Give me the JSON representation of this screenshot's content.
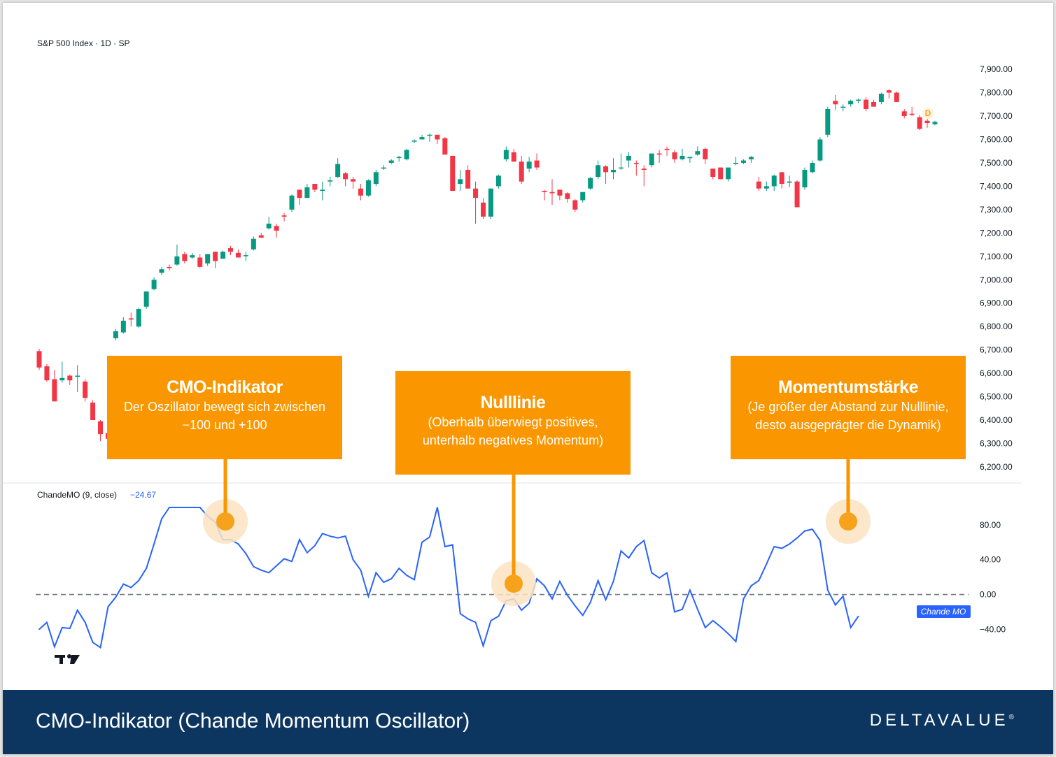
{
  "colors": {
    "up": "#089981",
    "down": "#f23645",
    "cmo_line": "#2962ff",
    "zero_line": "#787b86",
    "callout": "#fa9600",
    "marker": "#f7a21b",
    "halo": "#fbe3c1",
    "footer_bg": "#0c3660"
  },
  "chart_data": [
    {
      "type": "candlestick",
      "title": "S&P 500 Index · 1D · SP",
      "ylim": [
        6170,
        7960
      ],
      "yticks": [
        "7,900.00",
        "7,800.00",
        "7,700.00",
        "7,600.00",
        "7,500.00",
        "7,400.00",
        "7,300.00",
        "7,200.00",
        "7,100.00",
        "7,000.00",
        "6,900.00",
        "6,800.00",
        "6,700.00",
        "6,600.00",
        "6,500.00",
        "6,400.00",
        "6,300.00",
        "6,200.00"
      ],
      "ytick_values": [
        7900,
        7800,
        7700,
        7600,
        7500,
        7400,
        7300,
        7200,
        7100,
        7000,
        6900,
        6800,
        6700,
        6600,
        6500,
        6400,
        6300,
        6200
      ],
      "last_marker": "D",
      "candles": [
        [
          6695,
          6705,
          6615,
          6625
        ],
        [
          6630,
          6640,
          6565,
          6570
        ],
        [
          6575,
          6615,
          6480,
          6480
        ],
        [
          6570,
          6650,
          6560,
          6580
        ],
        [
          6590,
          6595,
          6550,
          6570
        ],
        [
          6590,
          6635,
          6520,
          6590
        ],
        [
          6565,
          6575,
          6480,
          6495
        ],
        [
          6475,
          6485,
          6400,
          6400
        ],
        [
          6395,
          6400,
          6310,
          6340
        ],
        [
          6345,
          6360,
          6310,
          6320
        ],
        [
          6750,
          6790,
          6740,
          6780
        ],
        [
          6775,
          6840,
          6770,
          6825
        ],
        [
          6835,
          6860,
          6800,
          6830
        ],
        [
          6800,
          6880,
          6795,
          6875
        ],
        [
          6885,
          6950,
          6875,
          6950
        ],
        [
          6960,
          7010,
          6955,
          7000
        ],
        [
          7030,
          7055,
          7020,
          7045
        ],
        [
          7055,
          7065,
          7040,
          7050
        ],
        [
          7065,
          7150,
          7060,
          7100
        ],
        [
          7110,
          7120,
          7070,
          7080
        ],
        [
          7095,
          7115,
          7090,
          7105
        ],
        [
          7095,
          7110,
          7050,
          7055
        ],
        [
          7070,
          7105,
          7060,
          7110
        ],
        [
          7120,
          7120,
          7050,
          7080
        ],
        [
          7090,
          7125,
          7090,
          7120
        ],
        [
          7135,
          7145,
          7105,
          7120
        ],
        [
          7115,
          7130,
          7100,
          7095
        ],
        [
          7105,
          7120,
          7080,
          7105
        ],
        [
          7130,
          7185,
          7125,
          7175
        ],
        [
          7190,
          7200,
          7180,
          7180
        ],
        [
          7220,
          7270,
          7215,
          7240
        ],
        [
          7230,
          7240,
          7180,
          7210
        ],
        [
          7275,
          7285,
          7250,
          7270
        ],
        [
          7300,
          7365,
          7290,
          7360
        ],
        [
          7385,
          7385,
          7320,
          7350
        ],
        [
          7350,
          7410,
          7350,
          7395
        ],
        [
          7410,
          7410,
          7375,
          7385
        ],
        [
          7380,
          7420,
          7340,
          7385
        ],
        [
          7420,
          7440,
          7400,
          7425
        ],
        [
          7440,
          7520,
          7435,
          7495
        ],
        [
          7455,
          7460,
          7400,
          7430
        ],
        [
          7430,
          7440,
          7390,
          7420
        ],
        [
          7390,
          7410,
          7340,
          7360
        ],
        [
          7360,
          7430,
          7355,
          7425
        ],
        [
          7410,
          7470,
          7400,
          7460
        ],
        [
          7475,
          7490,
          7470,
          7480
        ],
        [
          7500,
          7515,
          7495,
          7510
        ],
        [
          7525,
          7530,
          7505,
          7525
        ],
        [
          7515,
          7560,
          7510,
          7555
        ],
        [
          7595,
          7600,
          7585,
          7595
        ],
        [
          7600,
          7620,
          7600,
          7610
        ],
        [
          7620,
          7625,
          7590,
          7620
        ],
        [
          7620,
          7620,
          7580,
          7600
        ],
        [
          7605,
          7610,
          7540,
          7535
        ],
        [
          7530,
          7530,
          7380,
          7380
        ],
        [
          7410,
          7470,
          7380,
          7430
        ],
        [
          7470,
          7490,
          7390,
          7390
        ],
        [
          7390,
          7420,
          7240,
          7350
        ],
        [
          7330,
          7350,
          7260,
          7270
        ],
        [
          7270,
          7390,
          7260,
          7390
        ],
        [
          7400,
          7450,
          7390,
          7445
        ],
        [
          7515,
          7570,
          7505,
          7555
        ],
        [
          7545,
          7560,
          7505,
          7505
        ],
        [
          7505,
          7530,
          7410,
          7420
        ],
        [
          7475,
          7525,
          7460,
          7505
        ],
        [
          7510,
          7540,
          7470,
          7480
        ],
        [
          7380,
          7385,
          7340,
          7375
        ],
        [
          7375,
          7430,
          7320,
          7370
        ],
        [
          7385,
          7385,
          7340,
          7360
        ],
        [
          7370,
          7375,
          7330,
          7345
        ],
        [
          7340,
          7345,
          7290,
          7300
        ],
        [
          7340,
          7375,
          7330,
          7375
        ],
        [
          7390,
          7440,
          7385,
          7435
        ],
        [
          7440,
          7510,
          7430,
          7490
        ],
        [
          7485,
          7490,
          7410,
          7460
        ],
        [
          7460,
          7520,
          7430,
          7470
        ],
        [
          7480,
          7540,
          7470,
          7480
        ],
        [
          7510,
          7545,
          7480,
          7530
        ],
        [
          7500,
          7510,
          7445,
          7495
        ],
        [
          7475,
          7490,
          7400,
          7470
        ],
        [
          7490,
          7540,
          7480,
          7540
        ],
        [
          7540,
          7555,
          7500,
          7535
        ],
        [
          7560,
          7570,
          7530,
          7555
        ],
        [
          7545,
          7555,
          7500,
          7515
        ],
        [
          7515,
          7560,
          7510,
          7530
        ],
        [
          7520,
          7525,
          7500,
          7525
        ],
        [
          7535,
          7570,
          7530,
          7550
        ],
        [
          7560,
          7565,
          7495,
          7515
        ],
        [
          7475,
          7475,
          7430,
          7440
        ],
        [
          7480,
          7480,
          7430,
          7430
        ],
        [
          7430,
          7480,
          7420,
          7480
        ],
        [
          7495,
          7525,
          7490,
          7500
        ],
        [
          7500,
          7515,
          7495,
          7510
        ],
        [
          7515,
          7530,
          7500,
          7525
        ],
        [
          7420,
          7440,
          7380,
          7390
        ],
        [
          7390,
          7420,
          7380,
          7400
        ],
        [
          7400,
          7450,
          7380,
          7445
        ],
        [
          7460,
          7460,
          7390,
          7410
        ],
        [
          7415,
          7445,
          7395,
          7420
        ],
        [
          7420,
          7425,
          7310,
          7310
        ],
        [
          7395,
          7480,
          7385,
          7470
        ],
        [
          7460,
          7510,
          7455,
          7500
        ],
        [
          7510,
          7610,
          7505,
          7600
        ],
        [
          7620,
          7740,
          7610,
          7730
        ],
        [
          7765,
          7790,
          7725,
          7750
        ],
        [
          7740,
          7750,
          7720,
          7740
        ],
        [
          7750,
          7770,
          7740,
          7765
        ],
        [
          7770,
          7775,
          7755,
          7770
        ],
        [
          7770,
          7780,
          7720,
          7730
        ],
        [
          7760,
          7770,
          7740,
          7740
        ],
        [
          7760,
          7800,
          7750,
          7795
        ],
        [
          7810,
          7815,
          7775,
          7800
        ],
        [
          7800,
          7805,
          7760,
          7760
        ],
        [
          7720,
          7730,
          7690,
          7700
        ],
        [
          7710,
          7740,
          7700,
          7705
        ],
        [
          7695,
          7705,
          7640,
          7645
        ],
        [
          7680,
          7700,
          7650,
          7670
        ],
        [
          7665,
          7680,
          7660,
          7675
        ]
      ]
    },
    {
      "type": "line",
      "title": "ChandeMO (9, close)",
      "last_value": "−24.67",
      "last_label": "Chande MO",
      "ylim": [
        -59,
        108
      ],
      "yticks": [
        "80.00",
        "40.00",
        "0.00",
        "−40.00"
      ],
      "ytick_values": [
        80,
        40,
        0,
        -40
      ],
      "zero_line": 0,
      "values": [
        -40,
        -32,
        -60,
        -38,
        -39,
        -18,
        -32,
        -55,
        -61,
        -14,
        -3,
        12,
        8,
        16,
        30,
        58,
        87,
        100,
        100,
        100,
        100,
        100,
        90,
        83,
        63,
        63,
        58,
        47,
        32,
        28,
        25,
        33,
        41,
        38,
        63,
        48,
        56,
        70,
        67,
        65,
        67,
        40,
        28,
        -2,
        25,
        14,
        18,
        30,
        22,
        17,
        60,
        66,
        100,
        55,
        57,
        -22,
        -28,
        -32,
        -59,
        -30,
        -25,
        -7,
        -5,
        -18,
        -10,
        18,
        10,
        -5,
        15,
        -1,
        -13,
        -24,
        -9,
        16,
        -6,
        15,
        50,
        42,
        55,
        62,
        25,
        19,
        25,
        -20,
        -17,
        5,
        -17,
        -38,
        -30,
        -37,
        -45,
        -54,
        -5,
        10,
        16,
        35,
        55,
        53,
        58,
        65,
        73,
        75,
        62,
        5,
        -12,
        -2,
        -38,
        -25
      ]
    }
  ],
  "callouts": [
    {
      "title": "CMO-Indikator",
      "line1": "Der Oszillator bewegt sich zwischen",
      "line2": "−100 und +100"
    },
    {
      "title": "Nulllinie",
      "line1": "(Oberhalb überwiegt positives,",
      "line2": "unterhalb negatives Momentum)"
    },
    {
      "title": "Momentumstärke",
      "line1": "(Je größer der Abstand zur Nulllinie,",
      "line2": "desto ausgeprägter die Dynamik)"
    }
  ],
  "footer": {
    "title": "CMO-Indikator (Chande Momentum Oscillator)",
    "logo": "DELTAVALUE",
    "logo_mark": "®"
  }
}
